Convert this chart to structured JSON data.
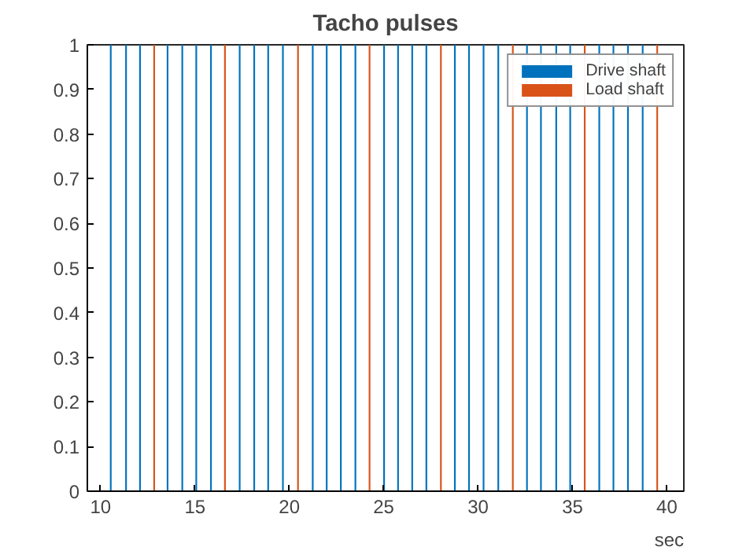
{
  "chart_data": {
    "type": "bar",
    "title": "Tacho pulses",
    "xlabel": "sec",
    "series": [
      {
        "name": "Drive shaft",
        "color": "#0072bd",
        "x": [
          10.54,
          11.35,
          12.09,
          13.55,
          14.33,
          15.07,
          15.85,
          17.37,
          18.14,
          18.88,
          19.66,
          21.24,
          21.98,
          22.73,
          23.5,
          25.02,
          25.76,
          26.51,
          27.26,
          28.77,
          29.52,
          30.29,
          31.07,
          32.59,
          33.33,
          34.14,
          34.88,
          36.42,
          37.17,
          37.94,
          38.72
        ],
        "values": [
          1,
          1,
          1,
          1,
          1,
          1,
          1,
          1,
          1,
          1,
          1,
          1,
          1,
          1,
          1,
          1,
          1,
          1,
          1,
          1,
          1,
          1,
          1,
          1,
          1,
          1,
          1,
          1,
          1,
          1,
          1
        ]
      },
      {
        "name": "Load shaft",
        "color": "#d95319",
        "x": [
          12.84,
          16.59,
          20.46,
          24.25,
          28.03,
          31.84,
          35.65,
          39.49
        ],
        "values": [
          1,
          1,
          1,
          1,
          1,
          1,
          1,
          1
        ]
      }
    ],
    "xlim": [
      9.3,
      40.9
    ],
    "xticks": [
      10,
      15,
      20,
      25,
      30,
      35,
      40
    ],
    "ylim": [
      0,
      1
    ],
    "yticks": [
      0,
      {
        "value": 0.1,
        "label": "0.1"
      },
      {
        "value": 0.2,
        "label": "0.2"
      },
      {
        "value": 0.3,
        "label": "0.3"
      },
      {
        "value": 0.4,
        "label": "0.4"
      },
      {
        "value": 0.5,
        "label": "0.5"
      },
      {
        "value": 0.6,
        "label": "0.6"
      },
      {
        "value": 0.7,
        "label": "0.7"
      },
      {
        "value": 0.8,
        "label": "0.8"
      },
      {
        "value": 0.9,
        "label": "0.9"
      },
      1
    ],
    "legend": "top right",
    "grid": false
  }
}
